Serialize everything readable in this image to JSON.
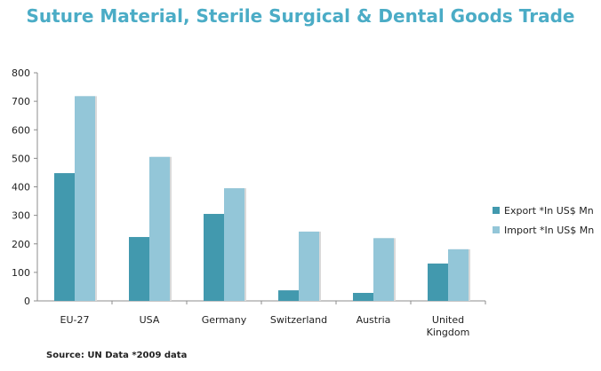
{
  "chart_data": {
    "type": "bar",
    "title": "Suture Material, Sterile Surgical & Dental Goods Trade",
    "categories": [
      "EU-27",
      "USA",
      "Germany",
      "Switzerland",
      "Austria",
      "United Kingdom"
    ],
    "category_lines": [
      [
        "EU-27"
      ],
      [
        "USA"
      ],
      [
        "Germany"
      ],
      [
        "Switzerland"
      ],
      [
        "Austria"
      ],
      [
        "United",
        "Kingdom"
      ]
    ],
    "series": [
      {
        "name": "Export *In US$ Mn",
        "values": [
          448,
          224,
          305,
          37,
          28,
          131
        ],
        "color": "#4299ae"
      },
      {
        "name": "Import *In US$ Mn",
        "values": [
          718,
          505,
          395,
          243,
          220,
          181
        ],
        "color": "#93c6d8"
      }
    ],
    "ylim": [
      0,
      800
    ],
    "yticks": [
      0,
      100,
      200,
      300,
      400,
      500,
      600,
      700,
      800
    ],
    "grid": false,
    "legend": "right",
    "source_note": "Source: UN Data *2009 data"
  }
}
